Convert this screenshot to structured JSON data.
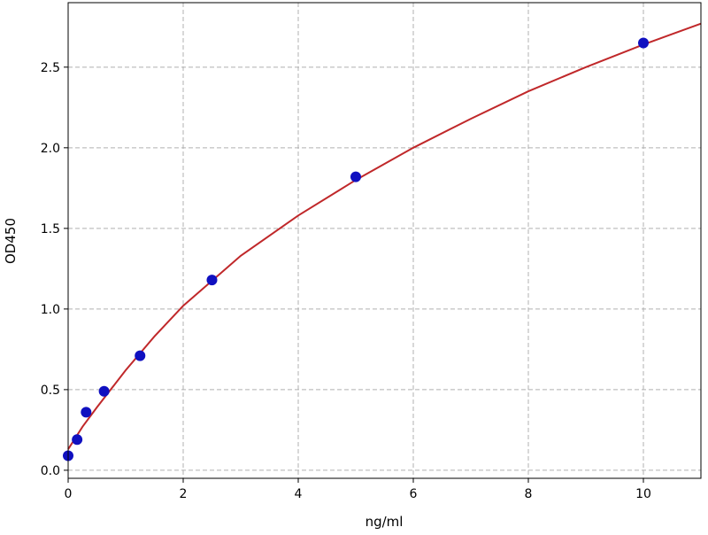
{
  "chart_data": {
    "type": "scatter",
    "title": "",
    "xlabel": "ng/ml",
    "ylabel": "OD450",
    "xlim": [
      0,
      11
    ],
    "ylim": [
      -0.05,
      2.9
    ],
    "xticks": [
      0,
      2,
      4,
      6,
      8,
      10
    ],
    "xtick_labels": [
      "0",
      "2",
      "4",
      "6",
      "8",
      "10"
    ],
    "yticks": [
      0.0,
      0.5,
      1.0,
      1.5,
      2.0,
      2.5
    ],
    "ytick_labels": [
      "0.0",
      "0.5",
      "1.0",
      "1.5",
      "2.0",
      "2.5"
    ],
    "grid": true,
    "points": {
      "x": [
        0,
        0.156,
        0.3125,
        0.625,
        1.25,
        2.5,
        5,
        10
      ],
      "y": [
        0.09,
        0.19,
        0.36,
        0.49,
        0.71,
        1.18,
        1.82,
        2.65
      ],
      "color": "#1010c0"
    },
    "fit_curve": {
      "x": [
        0,
        0.25,
        0.5,
        1,
        1.5,
        2,
        3,
        4,
        5,
        6,
        7,
        8,
        9,
        10,
        11
      ],
      "y": [
        0.13,
        0.27,
        0.39,
        0.62,
        0.83,
        1.02,
        1.33,
        1.58,
        1.8,
        2.0,
        2.18,
        2.35,
        2.5,
        2.64,
        2.77
      ],
      "color": "#c0282a"
    }
  }
}
